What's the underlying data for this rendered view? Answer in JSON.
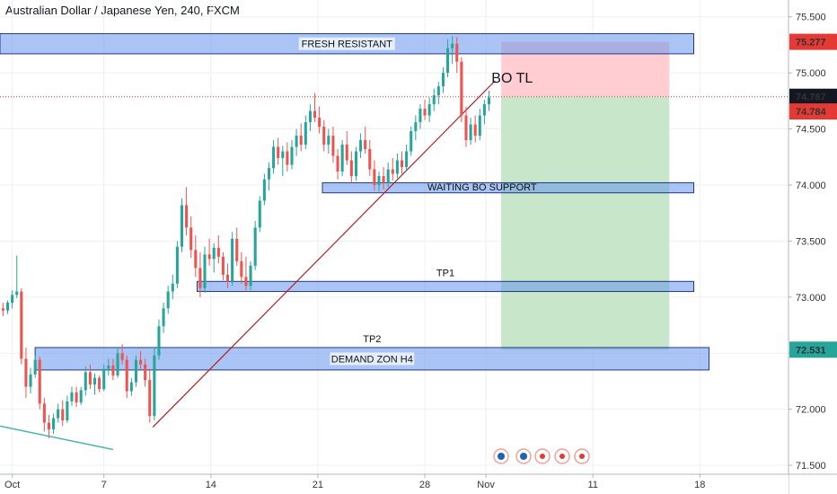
{
  "chart_data": {
    "type": "candlestick",
    "title": "Australian Dollar / Japanese Yen, 240, FXCM",
    "y_ticks": [
      "75.500",
      "75.000",
      "74.500",
      "74.000",
      "73.500",
      "73.000",
      "72.500",
      "72.000",
      "71.500"
    ],
    "y_tick_values": [
      75.5,
      75.0,
      74.5,
      74.0,
      73.5,
      73.0,
      72.5,
      72.0,
      71.5
    ],
    "ylim": [
      71.42,
      75.65
    ],
    "x_ticks": [
      "Oct",
      "7",
      "14",
      "21",
      "28",
      "Nov",
      "11",
      "18"
    ],
    "x_tick_days": [
      1,
      7,
      14,
      21,
      28,
      32,
      39,
      46
    ],
    "xlim": [
      0.2,
      51.8
    ],
    "price_labels": [
      {
        "text": "75.277",
        "value": 75.277,
        "color": "#e53935"
      },
      {
        "text": "74.787",
        "value": 74.787,
        "color": "#131722"
      },
      {
        "text": "74.784",
        "value": 74.784,
        "color": "#e53935"
      },
      {
        "text": "72.531",
        "value": 72.531,
        "color": "#26a69a"
      }
    ],
    "current_price": 74.787,
    "zones": [
      {
        "label": "FRESH RESISTANT",
        "from_day": 0.2,
        "to_day": 45.6,
        "low": 75.17,
        "high": 75.35
      },
      {
        "label": "WAITING BO SUPPORT",
        "from_day": 21.3,
        "to_day": 45.6,
        "low": 73.93,
        "high": 74.02
      },
      {
        "label": "TP1",
        "label_above": true,
        "from_day": 13.1,
        "to_day": 45.6,
        "low": 73.05,
        "high": 73.14
      },
      {
        "label": "DEMAND ZON H4",
        "from_day": 2.5,
        "to_day": 46.6,
        "low": 72.35,
        "high": 72.55
      },
      {
        "label": "TP2",
        "label_above": true,
        "from_day": 2.5,
        "to_day": 46.6,
        "low": 72.55,
        "high": 72.55,
        "no_box": true
      }
    ],
    "position": {
      "from_day": 33.0,
      "to_day": 44.0,
      "stop": 75.277,
      "entry": 74.787,
      "target": 72.531,
      "risk_color": "#ffcdd2",
      "reward_color": "#c8e6c9"
    },
    "trendline": {
      "label": "BO TL",
      "points": [
        [
          10.2,
          71.84
        ],
        [
          32.6,
          74.93
        ]
      ],
      "color": "#b71c1c"
    },
    "aux_line": {
      "points": [
        [
          0.2,
          71.85
        ],
        [
          7.6,
          71.64
        ]
      ],
      "color": "#4db6ac"
    },
    "candles": [
      [
        0.4,
        72.9,
        72.95,
        72.83,
        72.88
      ],
      [
        0.7,
        72.88,
        72.97,
        72.85,
        72.95
      ],
      [
        1.0,
        72.95,
        73.06,
        72.9,
        73.02
      ],
      [
        1.3,
        73.02,
        73.37,
        72.99,
        73.05
      ],
      [
        1.6,
        73.05,
        73.08,
        72.4,
        72.45
      ],
      [
        1.9,
        72.45,
        72.55,
        72.1,
        72.2
      ],
      [
        2.2,
        72.2,
        72.37,
        72.14,
        72.31
      ],
      [
        2.5,
        72.31,
        72.48,
        72.28,
        72.44
      ],
      [
        2.8,
        72.44,
        72.47,
        72.0,
        72.05
      ],
      [
        3.1,
        72.05,
        72.1,
        71.8,
        71.88
      ],
      [
        3.4,
        71.88,
        71.95,
        71.74,
        71.82
      ],
      [
        3.7,
        71.82,
        71.96,
        71.78,
        71.92
      ],
      [
        4.0,
        71.92,
        72.05,
        71.88,
        72.0
      ],
      [
        4.3,
        72.0,
        72.08,
        71.85,
        71.9
      ],
      [
        4.6,
        71.9,
        72.12,
        71.88,
        72.07
      ],
      [
        4.9,
        72.07,
        72.2,
        72.03,
        72.15
      ],
      [
        5.2,
        72.15,
        72.2,
        72.02,
        72.06
      ],
      [
        5.5,
        72.06,
        72.2,
        72.04,
        72.17
      ],
      [
        5.8,
        72.17,
        72.38,
        72.12,
        72.33
      ],
      [
        6.1,
        72.33,
        72.4,
        72.18,
        72.22
      ],
      [
        6.4,
        72.22,
        72.32,
        72.13,
        72.28
      ],
      [
        6.7,
        72.28,
        72.3,
        72.15,
        72.18
      ],
      [
        7.0,
        72.18,
        72.4,
        72.16,
        72.36
      ],
      [
        7.3,
        72.36,
        72.45,
        72.3,
        72.39
      ],
      [
        7.6,
        72.39,
        72.45,
        72.26,
        72.3
      ],
      [
        7.9,
        72.3,
        72.55,
        72.28,
        72.5
      ],
      [
        8.2,
        72.5,
        72.58,
        72.4,
        72.44
      ],
      [
        8.5,
        72.44,
        72.48,
        72.1,
        72.16
      ],
      [
        8.8,
        72.16,
        72.28,
        72.12,
        72.24
      ],
      [
        9.1,
        72.24,
        72.48,
        72.2,
        72.44
      ],
      [
        9.4,
        72.44,
        72.52,
        72.36,
        72.4
      ],
      [
        9.7,
        72.4,
        72.45,
        72.2,
        72.26
      ],
      [
        10.0,
        72.26,
        72.36,
        71.88,
        71.94
      ],
      [
        10.3,
        71.94,
        72.55,
        71.9,
        72.48
      ],
      [
        10.6,
        72.48,
        72.8,
        72.44,
        72.74
      ],
      [
        10.9,
        72.74,
        72.95,
        72.68,
        72.9
      ],
      [
        11.2,
        72.9,
        73.1,
        72.85,
        73.05
      ],
      [
        11.5,
        73.05,
        73.2,
        72.98,
        73.12
      ],
      [
        11.8,
        73.12,
        73.5,
        73.08,
        73.45
      ],
      [
        12.1,
        73.45,
        73.88,
        73.4,
        73.82
      ],
      [
        12.4,
        73.82,
        73.98,
        73.55,
        73.62
      ],
      [
        12.7,
        73.62,
        73.72,
        73.35,
        73.42
      ],
      [
        13.0,
        73.42,
        73.55,
        73.18,
        73.26
      ],
      [
        13.3,
        73.26,
        73.4,
        73.0,
        73.08
      ],
      [
        13.6,
        73.08,
        73.45,
        73.04,
        73.38
      ],
      [
        13.9,
        73.38,
        73.52,
        73.28,
        73.34
      ],
      [
        14.2,
        73.34,
        73.48,
        73.22,
        73.44
      ],
      [
        14.5,
        73.44,
        73.55,
        73.3,
        73.36
      ],
      [
        14.8,
        73.36,
        73.4,
        73.15,
        73.2
      ],
      [
        15.1,
        73.2,
        73.3,
        73.08,
        73.14
      ],
      [
        15.4,
        73.14,
        73.58,
        73.1,
        73.52
      ],
      [
        15.7,
        73.52,
        73.62,
        73.28,
        73.32
      ],
      [
        16.0,
        73.32,
        73.4,
        73.12,
        73.18
      ],
      [
        16.3,
        73.18,
        73.36,
        73.06,
        73.1
      ],
      [
        16.6,
        73.1,
        73.32,
        73.06,
        73.28
      ],
      [
        16.9,
        73.28,
        73.68,
        73.24,
        73.62
      ],
      [
        17.2,
        73.62,
        73.9,
        73.58,
        73.86
      ],
      [
        17.5,
        73.86,
        74.1,
        73.82,
        74.05
      ],
      [
        17.8,
        74.05,
        74.2,
        73.95,
        74.15
      ],
      [
        18.1,
        74.15,
        74.4,
        74.1,
        74.34
      ],
      [
        18.4,
        74.34,
        74.42,
        74.18,
        74.24
      ],
      [
        18.7,
        74.24,
        74.35,
        74.08,
        74.3
      ],
      [
        19.0,
        74.3,
        74.38,
        74.12,
        74.18
      ],
      [
        19.3,
        74.18,
        74.4,
        74.14,
        74.34
      ],
      [
        19.6,
        74.34,
        74.5,
        74.26,
        74.44
      ],
      [
        19.9,
        74.44,
        74.55,
        74.3,
        74.36
      ],
      [
        20.2,
        74.36,
        74.62,
        74.32,
        74.56
      ],
      [
        20.5,
        74.56,
        74.72,
        74.48,
        74.66
      ],
      [
        20.8,
        74.66,
        74.82,
        74.56,
        74.6
      ],
      [
        21.1,
        74.6,
        74.7,
        74.46,
        74.52
      ],
      [
        21.4,
        74.52,
        74.58,
        74.3,
        74.36
      ],
      [
        21.7,
        74.36,
        74.5,
        74.28,
        74.44
      ],
      [
        22.0,
        74.44,
        74.52,
        74.2,
        74.26
      ],
      [
        22.3,
        74.26,
        74.32,
        74.05,
        74.12
      ],
      [
        22.6,
        74.12,
        74.4,
        74.08,
        74.36
      ],
      [
        22.9,
        74.36,
        74.48,
        74.18,
        74.22
      ],
      [
        23.2,
        74.22,
        74.3,
        74.02,
        74.08
      ],
      [
        23.5,
        74.08,
        74.34,
        74.04,
        74.3
      ],
      [
        23.8,
        74.3,
        74.46,
        74.24,
        74.4
      ],
      [
        24.1,
        74.4,
        74.52,
        74.28,
        74.32
      ],
      [
        24.4,
        74.32,
        74.4,
        74.08,
        74.14
      ],
      [
        24.7,
        74.14,
        74.22,
        73.95,
        74.0
      ],
      [
        25.0,
        74.0,
        74.12,
        73.94,
        74.08
      ],
      [
        25.3,
        74.08,
        74.16,
        73.96,
        74.02
      ],
      [
        25.6,
        74.02,
        74.2,
        73.98,
        74.14
      ],
      [
        25.9,
        74.14,
        74.24,
        74.04,
        74.1
      ],
      [
        26.2,
        74.1,
        74.28,
        74.06,
        74.22
      ],
      [
        26.5,
        74.22,
        74.3,
        74.1,
        74.16
      ],
      [
        26.8,
        74.16,
        74.36,
        74.12,
        74.3
      ],
      [
        27.1,
        74.3,
        74.52,
        74.26,
        74.48
      ],
      [
        27.4,
        74.48,
        74.62,
        74.4,
        74.56
      ],
      [
        27.7,
        74.56,
        74.72,
        74.5,
        74.68
      ],
      [
        28.0,
        74.68,
        74.76,
        74.58,
        74.62
      ],
      [
        28.3,
        74.62,
        74.78,
        74.56,
        74.72
      ],
      [
        28.6,
        74.72,
        74.86,
        74.66,
        74.8
      ],
      [
        28.9,
        74.8,
        74.92,
        74.72,
        74.88
      ],
      [
        29.2,
        74.88,
        75.05,
        74.82,
        75.0
      ],
      [
        29.5,
        75.0,
        75.3,
        74.96,
        75.22
      ],
      [
        29.8,
        75.22,
        75.33,
        75.08,
        75.26
      ],
      [
        30.1,
        75.26,
        75.32,
        75.0,
        75.1
      ],
      [
        30.4,
        75.1,
        75.14,
        74.56,
        74.62
      ],
      [
        30.7,
        74.62,
        74.7,
        74.34,
        74.4
      ],
      [
        31.0,
        74.4,
        74.6,
        74.36,
        74.54
      ],
      [
        31.3,
        74.54,
        74.62,
        74.38,
        74.44
      ],
      [
        31.6,
        74.44,
        74.68,
        74.4,
        74.62
      ],
      [
        31.9,
        74.62,
        74.76,
        74.54,
        74.72
      ],
      [
        32.2,
        74.72,
        74.84,
        74.66,
        74.78
      ]
    ]
  }
}
